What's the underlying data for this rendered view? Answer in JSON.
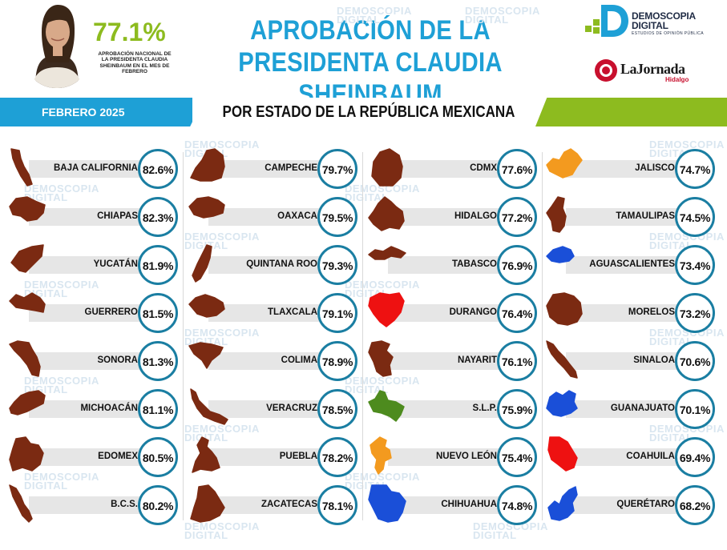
{
  "header": {
    "national_value": "77.1%",
    "national_caption": "APROBACIÓN NACIONAL DE LA PRESIDENTA CLAUDIA SHEINBAUM EN EL MES DE FEBRERO",
    "title_line1": "APROBACIÓN DE LA",
    "title_line2": "PRESIDENTA CLAUDIA SHEINBAUM",
    "logo_demoscopia_name1": "DEMOSCOPIA",
    "logo_demoscopia_name2": "DIGITAL",
    "logo_demoscopia_tag": "ESTUDIOS DE OPINIÓN PÚBLICA",
    "logo_jornada_name": "LaJornada",
    "logo_jornada_sub": "Hidalgo"
  },
  "band": {
    "period": "FEBRERO 2025",
    "subtitle": "POR ESTADO DE LA REPÚBLICA MEXICANA"
  },
  "watermark": "DEMOSCOPIA DIGITAL",
  "colors": {
    "blue": "#1ea0d6",
    "green": "#8dbb1f",
    "circle_border": "#1a7ea2",
    "party_morena": "#7b2a12",
    "party_pan": "#1a4fd8",
    "party_pri": "#ee1111",
    "party_mc": "#f39a1f",
    "party_pvem": "#4d8b1e"
  },
  "chart_data": {
    "type": "table",
    "title": "APROBACIÓN DE LA PRESIDENTA CLAUDIA SHEINBAUM",
    "subtitle": "POR ESTADO DE LA REPÚBLICA MEXICANA",
    "period": "FEBRERO 2025",
    "unit": "%",
    "columns": [
      [
        {
          "state": "BAJA CALIFORNIA",
          "value": 82.6,
          "label": "82.6%",
          "color": "#7b2a12",
          "shape": "baja-california"
        },
        {
          "state": "CHIAPAS",
          "value": 82.3,
          "label": "82.3%",
          "color": "#7b2a12",
          "shape": "chiapas"
        },
        {
          "state": "YUCATÁN",
          "value": 81.9,
          "label": "81.9%",
          "color": "#7b2a12",
          "shape": "yucatan"
        },
        {
          "state": "GUERRERO",
          "value": 81.5,
          "label": "81.5%",
          "color": "#7b2a12",
          "shape": "guerrero"
        },
        {
          "state": "SONORA",
          "value": 81.3,
          "label": "81.3%",
          "color": "#7b2a12",
          "shape": "sonora"
        },
        {
          "state": "MICHOACÁN",
          "value": 81.1,
          "label": "81.1%",
          "color": "#7b2a12",
          "shape": "michoacan"
        },
        {
          "state": "EDOMEX",
          "value": 80.5,
          "label": "80.5%",
          "color": "#7b2a12",
          "shape": "edomex"
        },
        {
          "state": "B.C.S.",
          "value": 80.2,
          "label": "80.2%",
          "color": "#7b2a12",
          "shape": "bcs"
        }
      ],
      [
        {
          "state": "CAMPECHE",
          "value": 79.7,
          "label": "79.7%",
          "color": "#7b2a12",
          "shape": "campeche"
        },
        {
          "state": "OAXACA",
          "value": 79.5,
          "label": "79.5%",
          "color": "#7b2a12",
          "shape": "oaxaca"
        },
        {
          "state": "QUINTANA ROO",
          "value": 79.3,
          "label": "79.3%",
          "color": "#7b2a12",
          "shape": "quintana-roo"
        },
        {
          "state": "TLAXCALA",
          "value": 79.1,
          "label": "79.1%",
          "color": "#7b2a12",
          "shape": "tlaxcala"
        },
        {
          "state": "COLIMA",
          "value": 78.9,
          "label": "78.9%",
          "color": "#7b2a12",
          "shape": "colima"
        },
        {
          "state": "VERACRUZ",
          "value": 78.5,
          "label": "78.5%",
          "color": "#7b2a12",
          "shape": "veracruz"
        },
        {
          "state": "PUEBLA",
          "value": 78.2,
          "label": "78.2%",
          "color": "#7b2a12",
          "shape": "puebla"
        },
        {
          "state": "ZACATECAS",
          "value": 78.1,
          "label": "78.1%",
          "color": "#7b2a12",
          "shape": "zacatecas"
        }
      ],
      [
        {
          "state": "CDMX",
          "value": 77.6,
          "label": "77.6%",
          "color": "#7b2a12",
          "shape": "cdmx"
        },
        {
          "state": "HIDALGO",
          "value": 77.2,
          "label": "77.2%",
          "color": "#7b2a12",
          "shape": "hidalgo"
        },
        {
          "state": "TABASCO",
          "value": 76.9,
          "label": "76.9%",
          "color": "#7b2a12",
          "shape": "tabasco"
        },
        {
          "state": "DURANGO",
          "value": 76.4,
          "label": "76.4%",
          "color": "#ee1111",
          "shape": "durango"
        },
        {
          "state": "NAYARIT",
          "value": 76.1,
          "label": "76.1%",
          "color": "#7b2a12",
          "shape": "nayarit"
        },
        {
          "state": "S.L.P.",
          "value": 75.9,
          "label": "75.9%",
          "color": "#4d8b1e",
          "shape": "slp"
        },
        {
          "state": "NUEVO LEÓN",
          "value": 75.4,
          "label": "75.4%",
          "color": "#f39a1f",
          "shape": "nuevo-leon"
        },
        {
          "state": "CHIHUAHUA",
          "value": 74.8,
          "label": "74.8%",
          "color": "#1a4fd8",
          "shape": "chihuahua"
        }
      ],
      [
        {
          "state": "JALISCO",
          "value": 74.7,
          "label": "74.7%",
          "color": "#f39a1f",
          "shape": "jalisco"
        },
        {
          "state": "TAMAULIPAS",
          "value": 74.5,
          "label": "74.5%",
          "color": "#7b2a12",
          "shape": "tamaulipas"
        },
        {
          "state": "AGUASCALIENTES",
          "value": 73.4,
          "label": "73.4%",
          "color": "#1a4fd8",
          "shape": "aguascalientes"
        },
        {
          "state": "MORELOS",
          "value": 73.2,
          "label": "73.2%",
          "color": "#7b2a12",
          "shape": "morelos"
        },
        {
          "state": "SINALOA",
          "value": 70.6,
          "label": "70.6%",
          "color": "#7b2a12",
          "shape": "sinaloa"
        },
        {
          "state": "GUANAJUATO",
          "value": 70.1,
          "label": "70.1%",
          "color": "#1a4fd8",
          "shape": "guanajuato"
        },
        {
          "state": "COAHUILA",
          "value": 69.4,
          "label": "69.4%",
          "color": "#ee1111",
          "shape": "coahuila"
        },
        {
          "state": "QUERÉTARO",
          "value": 68.2,
          "label": "68.2%",
          "color": "#1a4fd8",
          "shape": "queretaro"
        }
      ]
    ]
  }
}
